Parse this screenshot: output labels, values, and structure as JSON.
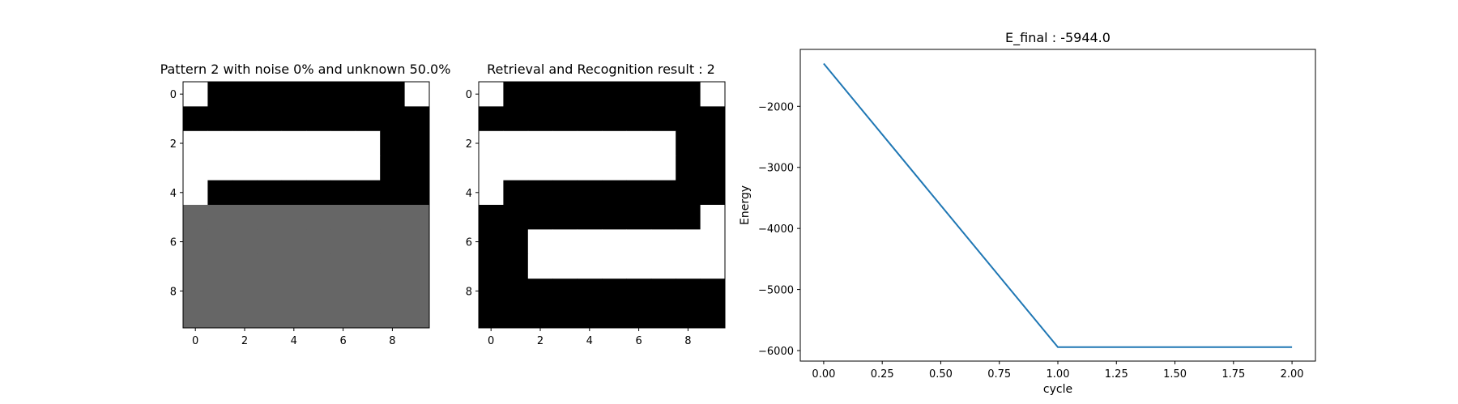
{
  "chart_data": [
    {
      "type": "heatmap",
      "title": "Pattern 2 with noise 0% and unknown 50.0%",
      "colors": {
        "1": "#000000",
        "0": "#ffffff",
        "-1": "#666666"
      },
      "x_ticks": [
        "0",
        "2",
        "4",
        "6",
        "8"
      ],
      "y_ticks": [
        "0",
        "2",
        "4",
        "6",
        "8"
      ],
      "grid": [
        [
          0,
          1,
          1,
          1,
          1,
          1,
          1,
          1,
          1,
          0
        ],
        [
          1,
          1,
          1,
          1,
          1,
          1,
          1,
          1,
          1,
          1
        ],
        [
          0,
          0,
          0,
          0,
          0,
          0,
          0,
          0,
          1,
          1
        ],
        [
          0,
          0,
          0,
          0,
          0,
          0,
          0,
          0,
          1,
          1
        ],
        [
          0,
          1,
          1,
          1,
          1,
          1,
          1,
          1,
          1,
          1
        ],
        [
          -1,
          -1,
          -1,
          -1,
          -1,
          -1,
          -1,
          -1,
          -1,
          -1
        ],
        [
          -1,
          -1,
          -1,
          -1,
          -1,
          -1,
          -1,
          -1,
          -1,
          -1
        ],
        [
          -1,
          -1,
          -1,
          -1,
          -1,
          -1,
          -1,
          -1,
          -1,
          -1
        ],
        [
          -1,
          -1,
          -1,
          -1,
          -1,
          -1,
          -1,
          -1,
          -1,
          -1
        ],
        [
          -1,
          -1,
          -1,
          -1,
          -1,
          -1,
          -1,
          -1,
          -1,
          -1
        ]
      ]
    },
    {
      "type": "heatmap",
      "title": "Retrieval and Recognition result : 2",
      "colors": {
        "1": "#000000",
        "0": "#ffffff",
        "-1": "#666666"
      },
      "x_ticks": [
        "0",
        "2",
        "4",
        "6",
        "8"
      ],
      "y_ticks": [
        "0",
        "2",
        "4",
        "6",
        "8"
      ],
      "grid": [
        [
          0,
          1,
          1,
          1,
          1,
          1,
          1,
          1,
          1,
          0
        ],
        [
          1,
          1,
          1,
          1,
          1,
          1,
          1,
          1,
          1,
          1
        ],
        [
          0,
          0,
          0,
          0,
          0,
          0,
          0,
          0,
          1,
          1
        ],
        [
          0,
          0,
          0,
          0,
          0,
          0,
          0,
          0,
          1,
          1
        ],
        [
          0,
          1,
          1,
          1,
          1,
          1,
          1,
          1,
          1,
          1
        ],
        [
          1,
          1,
          1,
          1,
          1,
          1,
          1,
          1,
          1,
          0
        ],
        [
          1,
          1,
          0,
          0,
          0,
          0,
          0,
          0,
          0,
          0
        ],
        [
          1,
          1,
          0,
          0,
          0,
          0,
          0,
          0,
          0,
          0
        ],
        [
          1,
          1,
          1,
          1,
          1,
          1,
          1,
          1,
          1,
          1
        ],
        [
          1,
          1,
          1,
          1,
          1,
          1,
          1,
          1,
          1,
          1
        ]
      ]
    },
    {
      "type": "line",
      "title": "E_final : -5944.0",
      "xlabel": "cycle",
      "ylabel": "Energy",
      "x": [
        0.0,
        1.0,
        2.0
      ],
      "series": [
        {
          "values": [
            -1300,
            -5944,
            -5944
          ],
          "color": "#1f77b4"
        }
      ],
      "xlim": [
        -0.1,
        2.1
      ],
      "ylim": [
        -6172,
        -1068
      ],
      "x_ticks": [
        0.0,
        0.25,
        0.5,
        0.75,
        1.0,
        1.25,
        1.5,
        1.75,
        2.0
      ],
      "x_tick_labels": [
        "0.00",
        "0.25",
        "0.50",
        "0.75",
        "1.00",
        "1.25",
        "1.50",
        "1.75",
        "2.00"
      ],
      "y_ticks": [
        -2000,
        -3000,
        -4000,
        -5000,
        -6000
      ],
      "y_tick_labels": [
        "−2000",
        "−3000",
        "−4000",
        "−5000",
        "−6000"
      ]
    }
  ]
}
